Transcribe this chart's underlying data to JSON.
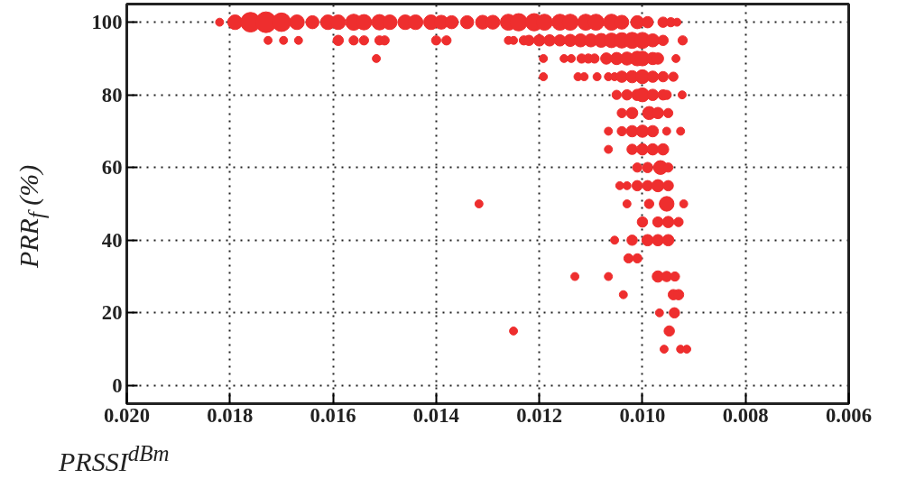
{
  "chart_data": {
    "type": "bubble",
    "xlabel": "PRSSI$^{dBm}$",
    "ylabel": "PRR$_{f}$ (%)",
    "xlim": [
      0.02,
      0.006
    ],
    "xticks": [
      {
        "value": 0.02,
        "label": "0.020"
      },
      {
        "value": 0.018,
        "label": "0.018"
      },
      {
        "value": 0.016,
        "label": "0.016"
      },
      {
        "value": 0.014,
        "label": "0.014"
      },
      {
        "value": 0.012,
        "label": "0.012"
      },
      {
        "value": 0.01,
        "label": "0.010"
      },
      {
        "value": 0.008,
        "label": "0.008"
      },
      {
        "value": 0.006,
        "label": "0.006"
      }
    ],
    "ylim": [
      -5,
      105
    ],
    "yticks": [
      0,
      20,
      40,
      60,
      80,
      100
    ],
    "grid": true,
    "marker": "circle",
    "series": [
      {
        "color": "#ee2e2e",
        "x": [
          0.0182,
          0.0179,
          0.0176,
          0.0173,
          0.017,
          0.0167,
          0.0164,
          0.0161,
          0.0159,
          0.0156,
          0.0154,
          0.0151,
          0.0149,
          0.0146,
          0.0144,
          0.0141,
          0.0139,
          0.0137,
          0.0134,
          0.0131,
          0.0129,
          0.0126,
          0.0124,
          0.0121,
          0.0119,
          0.0116,
          0.0114,
          0.0111,
          0.0109,
          0.0106,
          0.0104,
          0.0101,
          0.0099,
          0.0096,
          0.00945,
          0.00933,
          0.01726,
          0.01696,
          0.01667,
          0.0159,
          0.0156,
          0.0154,
          0.0151,
          0.015,
          0.014,
          0.0138,
          0.0126,
          0.0125,
          0.0123,
          0.0122,
          0.012,
          0.0118,
          0.0116,
          0.0114,
          0.0112,
          0.011,
          0.0108,
          0.0106,
          0.0104,
          0.0102,
          0.01,
          0.0098,
          0.0096,
          0.00922,
          0.01516,
          0.01192,
          0.01152,
          0.01138,
          0.01118,
          0.01105,
          0.01093,
          0.0107,
          0.0105,
          0.0103,
          0.0101,
          0.01,
          0.0098,
          0.0097,
          0.00935,
          0.01192,
          0.01125,
          0.01113,
          0.01088,
          0.01066,
          0.01054,
          0.0104,
          0.0102,
          0.01,
          0.0098,
          0.0096,
          0.0094,
          0.0105,
          0.0103,
          0.0101,
          0.01,
          0.0098,
          0.0096,
          0.00953,
          0.00923,
          0.0104,
          0.0102,
          0.00987,
          0.0097,
          0.0095,
          0.01066,
          0.0104,
          0.0102,
          0.01,
          0.0098,
          0.00953,
          0.00926,
          0.01066,
          0.0102,
          0.01,
          0.0098,
          0.0096,
          0.0101,
          0.0099,
          0.00965,
          0.0095,
          0.01044,
          0.0103,
          0.0101,
          0.0099,
          0.0097,
          0.0095,
          0.01317,
          0.0103,
          0.00987,
          0.00953,
          0.0092,
          0.01,
          0.0097,
          0.0095,
          0.0093,
          0.01054,
          0.0102,
          0.0099,
          0.0097,
          0.0095,
          0.01027,
          0.0101,
          0.01131,
          0.01066,
          0.0097,
          0.00953,
          0.00937,
          0.01037,
          0.0094,
          0.0093,
          0.00967,
          0.00938,
          0.0125,
          0.00948,
          0.00958,
          0.00926,
          0.00914
        ],
        "values": [
          100,
          100,
          100,
          100,
          100,
          100,
          100,
          100,
          100,
          100,
          100,
          100,
          100,
          100,
          100,
          100,
          100,
          100,
          100,
          100,
          100,
          100,
          100,
          100,
          100,
          100,
          100,
          100,
          100,
          100,
          100,
          100,
          100,
          100,
          100,
          100,
          95,
          95,
          95,
          95,
          95,
          95,
          95,
          95,
          95,
          95,
          95,
          95,
          95,
          95,
          95,
          95,
          95,
          95,
          95,
          95,
          95,
          95,
          95,
          95,
          95,
          95,
          95,
          95,
          90,
          90,
          90,
          90,
          90,
          90,
          90,
          90,
          90,
          90,
          90,
          90,
          90,
          90,
          90,
          85,
          85,
          85,
          85,
          85,
          85,
          85,
          85,
          85,
          85,
          85,
          85,
          80,
          80,
          80,
          80,
          80,
          80,
          80,
          80,
          75,
          75,
          75,
          75,
          75,
          70,
          70,
          70,
          70,
          70,
          70,
          70,
          65,
          65,
          65,
          65,
          65,
          60,
          60,
          60,
          60,
          55,
          55,
          55,
          55,
          55,
          55,
          50,
          50,
          50,
          50,
          50,
          45,
          45,
          45,
          45,
          40,
          40,
          40,
          40,
          40,
          35,
          35,
          30,
          30,
          30,
          30,
          30,
          25,
          25,
          25,
          20,
          20,
          15,
          15,
          10,
          10,
          10
        ],
        "sizes": [
          0.15,
          0.5,
          0.9,
          1,
          0.8,
          0.5,
          0.4,
          0.5,
          0.5,
          0.6,
          0.55,
          0.55,
          0.5,
          0.5,
          0.5,
          0.5,
          0.45,
          0.4,
          0.4,
          0.45,
          0.45,
          0.6,
          0.7,
          0.7,
          0.6,
          0.6,
          0.6,
          0.6,
          0.6,
          0.6,
          0.45,
          0.4,
          0.3,
          0.25,
          0.2,
          0.15,
          0.15,
          0.15,
          0.15,
          0.25,
          0.2,
          0.2,
          0.2,
          0.2,
          0.2,
          0.2,
          0.15,
          0.15,
          0.2,
          0.25,
          0.3,
          0.3,
          0.3,
          0.35,
          0.4,
          0.4,
          0.45,
          0.5,
          0.55,
          0.6,
          0.6,
          0.4,
          0.25,
          0.2,
          0.15,
          0.15,
          0.15,
          0.15,
          0.2,
          0.2,
          0.2,
          0.3,
          0.35,
          0.4,
          0.5,
          0.5,
          0.35,
          0.3,
          0.15,
          0.15,
          0.15,
          0.15,
          0.15,
          0.15,
          0.15,
          0.3,
          0.35,
          0.45,
          0.3,
          0.25,
          0.2,
          0.2,
          0.25,
          0.3,
          0.45,
          0.3,
          0.25,
          0.2,
          0.15,
          0.2,
          0.3,
          0.4,
          0.3,
          0.2,
          0.15,
          0.2,
          0.3,
          0.35,
          0.3,
          0.15,
          0.15,
          0.15,
          0.25,
          0.3,
          0.3,
          0.3,
          0.2,
          0.25,
          0.45,
          0.2,
          0.15,
          0.15,
          0.25,
          0.25,
          0.35,
          0.25,
          0.15,
          0.15,
          0.2,
          0.5,
          0.15,
          0.25,
          0.25,
          0.3,
          0.2,
          0.15,
          0.25,
          0.3,
          0.3,
          0.3,
          0.2,
          0.2,
          0.15,
          0.15,
          0.3,
          0.25,
          0.2,
          0.15,
          0.25,
          0.25,
          0.15,
          0.25,
          0.15,
          0.25,
          0.15,
          0.15,
          0.15
        ]
      }
    ]
  }
}
